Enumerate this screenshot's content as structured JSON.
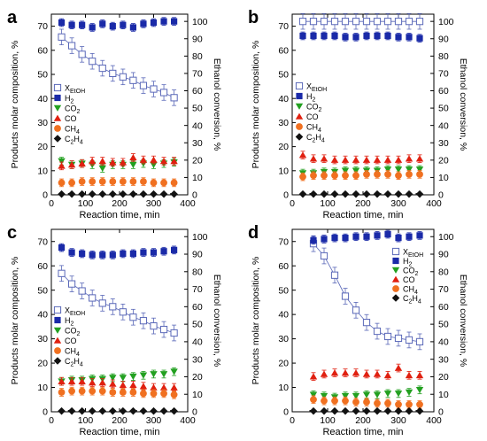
{
  "figure": {
    "panel_count": 4
  },
  "legend_items": [
    {
      "label": "X",
      "sub": "EtOH",
      "symbol": "square-open",
      "color": "#5a68b8"
    },
    {
      "label": "H",
      "sub": "2",
      "symbol": "square",
      "color": "#1a2aa8"
    },
    {
      "label": "CO",
      "sub": "2",
      "symbol": "triangle-down",
      "color": "#22a020"
    },
    {
      "label": "CO",
      "sub": "",
      "symbol": "triangle-up",
      "color": "#e02010"
    },
    {
      "label": "CH",
      "sub": "4",
      "symbol": "circle",
      "color": "#f07020"
    },
    {
      "label": "C",
      "sub": "2",
      "tail": "H",
      "sub2": "4",
      "symbol": "diamond",
      "color": "#111111"
    }
  ],
  "chart_data": [
    {
      "type": "scatter",
      "panel_label": "a",
      "xlabel": "Reaction time, min",
      "ylabel": "Products molar composition, %",
      "y2label": "Ethanol conversion, %",
      "xlim": [
        0,
        400
      ],
      "ylim": [
        0,
        75
      ],
      "y2lim": [
        0,
        104.17
      ],
      "xticks": [
        0,
        100,
        200,
        300,
        400
      ],
      "yticks": [
        0,
        10,
        20,
        30,
        40,
        50,
        60,
        70
      ],
      "y2ticks": [
        0,
        10,
        20,
        30,
        40,
        50,
        60,
        70,
        80,
        90,
        100
      ],
      "legend_position": "center-left",
      "x": [
        30,
        60,
        90,
        120,
        150,
        180,
        210,
        240,
        270,
        300,
        330,
        360
      ],
      "series": [
        {
          "key": "XEtOH",
          "axis": "right",
          "values": [
            91,
            86,
            81,
            77,
            73,
            70,
            68,
            66,
            63,
            61,
            59,
            56
          ]
        },
        {
          "key": "H2",
          "axis": "left",
          "values": [
            71.5,
            70.5,
            70.5,
            69.5,
            71,
            70,
            70.5,
            69.5,
            71,
            71.5,
            72,
            72
          ]
        },
        {
          "key": "CO2",
          "axis": "left",
          "values": [
            14,
            12.5,
            13,
            12.5,
            11,
            12.5,
            12.5,
            12.5,
            13,
            12.5,
            13,
            13.5
          ]
        },
        {
          "key": "CO",
          "axis": "left",
          "values": [
            12,
            12.5,
            13,
            14,
            14,
            13.5,
            13.5,
            15.5,
            14.5,
            14.5,
            14,
            14
          ]
        },
        {
          "key": "CH4",
          "axis": "left",
          "values": [
            5,
            5,
            5.5,
            5.5,
            5.5,
            5.5,
            5.5,
            5.5,
            5.5,
            5,
            5,
            5
          ]
        },
        {
          "key": "C2H4",
          "axis": "left",
          "values": [
            0.3,
            0.3,
            0.3,
            0.3,
            0.3,
            0.3,
            0.3,
            0.3,
            0.3,
            0.3,
            0.3,
            0.3
          ]
        }
      ]
    },
    {
      "type": "scatter",
      "panel_label": "b",
      "xlabel": "Reaction time, min",
      "ylabel": "Products molar composition, %",
      "y2label": "Ethanol conversion, %",
      "xlim": [
        0,
        400
      ],
      "ylim": [
        0,
        75
      ],
      "y2lim": [
        0,
        104.17
      ],
      "xticks": [
        0,
        100,
        200,
        300,
        400
      ],
      "yticks": [
        0,
        10,
        20,
        30,
        40,
        50,
        60,
        70
      ],
      "y2ticks": [
        0,
        10,
        20,
        30,
        40,
        50,
        60,
        70,
        80,
        90,
        100
      ],
      "legend_position": "center-left",
      "x": [
        30,
        60,
        90,
        120,
        150,
        180,
        210,
        240,
        270,
        300,
        330,
        360
      ],
      "series": [
        {
          "key": "XEtOH",
          "axis": "right",
          "values": [
            100,
            100,
            100,
            100,
            100,
            100,
            100,
            100,
            100,
            100,
            100,
            100
          ]
        },
        {
          "key": "H2",
          "axis": "left",
          "values": [
            66,
            66,
            66,
            66,
            65.5,
            65.5,
            66,
            66,
            66,
            65.5,
            65.5,
            65
          ]
        },
        {
          "key": "CO2",
          "axis": "left",
          "values": [
            9,
            9,
            9.5,
            9.5,
            10,
            10,
            10,
            10,
            10.5,
            10.5,
            10.5,
            10.5
          ]
        },
        {
          "key": "CO",
          "axis": "left",
          "values": [
            16.5,
            15,
            15,
            14.5,
            14.5,
            14.5,
            14.5,
            14.5,
            14.5,
            14.5,
            15,
            15
          ]
        },
        {
          "key": "CH4",
          "axis": "left",
          "values": [
            7.5,
            8,
            8,
            8,
            8,
            8,
            8.5,
            8.5,
            8.5,
            8,
            8.5,
            8.5
          ]
        },
        {
          "key": "C2H4",
          "axis": "left",
          "values": [
            0.3,
            0.3,
            0.3,
            0.3,
            0.3,
            0.3,
            0.3,
            0.3,
            0.3,
            0.3,
            0.3,
            0.3
          ]
        }
      ]
    },
    {
      "type": "scatter",
      "panel_label": "c",
      "xlabel": "Reaction time, min",
      "ylabel": "Products molar composition, %",
      "y2label": "Ethanol conversion, %",
      "xlim": [
        0,
        400
      ],
      "ylim": [
        0,
        75
      ],
      "y2lim": [
        0,
        104.17
      ],
      "xticks": [
        0,
        100,
        200,
        300,
        400
      ],
      "yticks": [
        0,
        10,
        20,
        30,
        40,
        50,
        60,
        70
      ],
      "y2ticks": [
        0,
        10,
        20,
        30,
        40,
        50,
        60,
        70,
        80,
        90,
        100
      ],
      "legend_position": "center-left",
      "x": [
        30,
        60,
        90,
        120,
        150,
        180,
        210,
        240,
        270,
        300,
        330,
        360
      ],
      "series": [
        {
          "key": "XEtOH",
          "axis": "right",
          "values": [
            79,
            73,
            69,
            65,
            62,
            60,
            57,
            54,
            52,
            49,
            47,
            45
          ]
        },
        {
          "key": "H2",
          "axis": "left",
          "values": [
            67.5,
            65.5,
            65,
            64.5,
            64.5,
            64.5,
            65,
            65,
            65.5,
            65.5,
            66,
            66.5
          ]
        },
        {
          "key": "CO2",
          "axis": "left",
          "values": [
            12.5,
            13,
            13,
            13.5,
            13.5,
            14,
            14,
            14.5,
            15,
            15.5,
            15.5,
            16.5
          ]
        },
        {
          "key": "CO",
          "axis": "left",
          "values": [
            12.5,
            12.5,
            12.5,
            12,
            12,
            11.5,
            11,
            11,
            10.5,
            10,
            10,
            10
          ]
        },
        {
          "key": "CH4",
          "axis": "left",
          "values": [
            8,
            8.5,
            8.5,
            8.5,
            8.5,
            8,
            8,
            8,
            7.5,
            7.5,
            7.5,
            7
          ]
        },
        {
          "key": "C2H4",
          "axis": "left",
          "values": [
            0.3,
            0.3,
            0.3,
            0.3,
            0.3,
            0.3,
            0.3,
            0.3,
            0.3,
            0.3,
            0.3,
            0.3
          ]
        }
      ]
    },
    {
      "type": "scatter",
      "panel_label": "d",
      "xlabel": "Reaction time, min",
      "ylabel": "Products molar composition, %",
      "y2label": "Ethanol conversion, %",
      "xlim": [
        0,
        400
      ],
      "ylim": [
        0,
        75
      ],
      "y2lim": [
        0,
        104.17
      ],
      "xticks": [
        0,
        100,
        200,
        300,
        400
      ],
      "yticks": [
        0,
        10,
        20,
        30,
        40,
        50,
        60,
        70
      ],
      "y2ticks": [
        0,
        10,
        20,
        30,
        40,
        50,
        60,
        70,
        80,
        90,
        100
      ],
      "legend_position": "top-right",
      "x": [
        60,
        90,
        120,
        150,
        180,
        210,
        240,
        270,
        300,
        330,
        360
      ],
      "series": [
        {
          "key": "XEtOH",
          "axis": "right",
          "values": [
            96,
            89,
            78,
            66,
            58,
            51,
            46,
            43,
            42,
            41,
            40
          ]
        },
        {
          "key": "H2",
          "axis": "left",
          "values": [
            70.5,
            71,
            71.5,
            71.5,
            72,
            72,
            72.5,
            73,
            71.5,
            72,
            72.5
          ]
        },
        {
          "key": "CO2",
          "axis": "left",
          "values": [
            7,
            6.5,
            6,
            6.5,
            6.5,
            7,
            7,
            7.5,
            7.5,
            8,
            9
          ]
        },
        {
          "key": "CO",
          "axis": "left",
          "values": [
            14.5,
            15.5,
            16,
            16,
            16,
            15.5,
            15.5,
            15,
            18,
            15,
            15
          ]
        },
        {
          "key": "CH4",
          "axis": "left",
          "values": [
            5,
            4.5,
            4.5,
            4.5,
            4,
            4,
            3.5,
            3.5,
            3,
            3,
            3
          ]
        },
        {
          "key": "C2H4",
          "axis": "left",
          "values": [
            0.3,
            0.3,
            0.3,
            0.3,
            0.3,
            0.3,
            0.3,
            0.3,
            0.3,
            0.3,
            0.3
          ]
        }
      ]
    }
  ]
}
